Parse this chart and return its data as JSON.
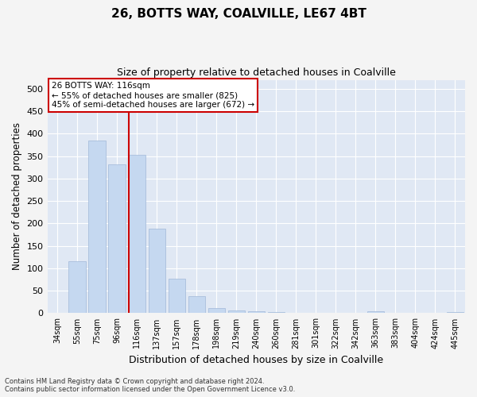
{
  "title1": "26, BOTTS WAY, COALVILLE, LE67 4BT",
  "title2": "Size of property relative to detached houses in Coalville",
  "xlabel": "Distribution of detached houses by size in Coalville",
  "ylabel": "Number of detached properties",
  "categories": [
    "34sqm",
    "55sqm",
    "75sqm",
    "96sqm",
    "116sqm",
    "137sqm",
    "157sqm",
    "178sqm",
    "198sqm",
    "219sqm",
    "240sqm",
    "260sqm",
    "281sqm",
    "301sqm",
    "322sqm",
    "342sqm",
    "363sqm",
    "383sqm",
    "404sqm",
    "424sqm",
    "445sqm"
  ],
  "values": [
    0,
    115,
    385,
    332,
    352,
    189,
    76,
    38,
    12,
    6,
    5,
    2,
    1,
    0,
    0,
    0,
    4,
    0,
    0,
    0,
    3
  ],
  "bar_color": "#c5d8f0",
  "bar_edge_color": "#a0b8d8",
  "vline_x": 4,
  "vline_color": "#cc0000",
  "annotation_text": "26 BOTTS WAY: 116sqm\n← 55% of detached houses are smaller (825)\n45% of semi-detached houses are larger (672) →",
  "annotation_box_color": "#ffffff",
  "annotation_edge_color": "#cc0000",
  "ylim": [
    0,
    520
  ],
  "yticks": [
    0,
    50,
    100,
    150,
    200,
    250,
    300,
    350,
    400,
    450,
    500
  ],
  "background_color": "#e0e8f4",
  "grid_color": "#ffffff",
  "fig_bg_color": "#f4f4f4",
  "footer_line1": "Contains HM Land Registry data © Crown copyright and database right 2024.",
  "footer_line2": "Contains public sector information licensed under the Open Government Licence v3.0."
}
